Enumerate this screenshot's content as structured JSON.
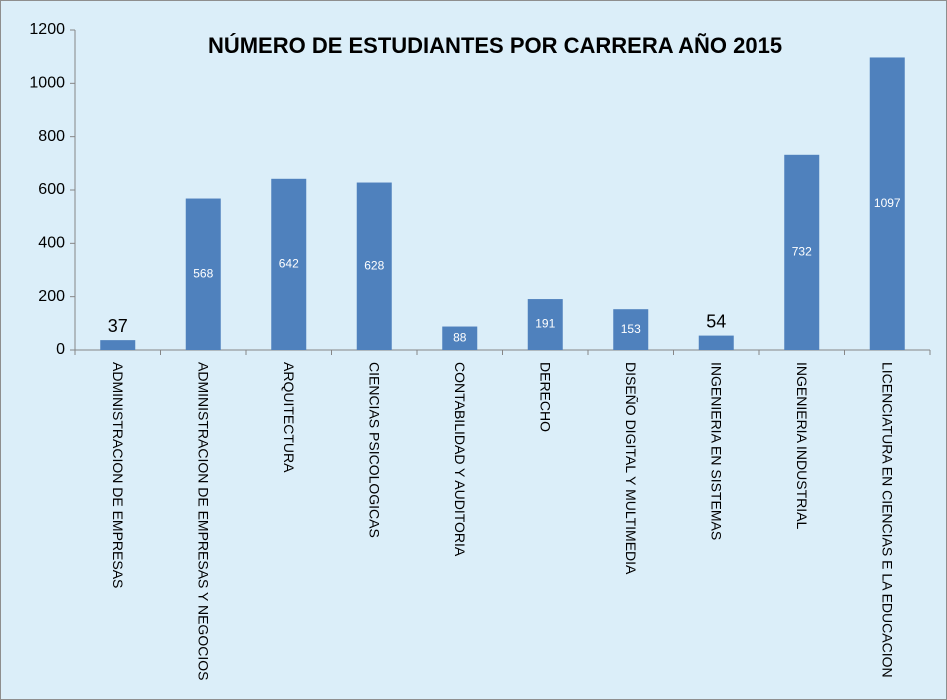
{
  "chart_data": {
    "type": "bar",
    "title": "NÚMERO DE ESTUDIANTES POR CARRERA AÑO 2015",
    "categories": [
      "ADMINISTRACION DE EMPRESAS",
      "ADMINISTRACION DE EMPRESAS Y NEGOCIOS",
      "ARQUITECTURA",
      "CIENCIAS PSICOLOGICAS",
      "CONTABILIDAD Y AUDITORIA",
      "DERECHO",
      "DISEÑO DIGITAL Y MULTIMEDIA",
      "INGENIERIA EN SISTEMAS",
      "INGENIERIA INDUSTRIAL",
      "LICENCIATURA EN CIENCIAS E LA EDUCACION"
    ],
    "values": [
      37,
      568,
      642,
      628,
      88,
      191,
      153,
      54,
      732,
      1097
    ],
    "color": "#4f81bd",
    "ylim": [
      0,
      1200
    ],
    "yticks": [
      0,
      200,
      400,
      600,
      800,
      1000,
      1200
    ],
    "grid": false
  }
}
